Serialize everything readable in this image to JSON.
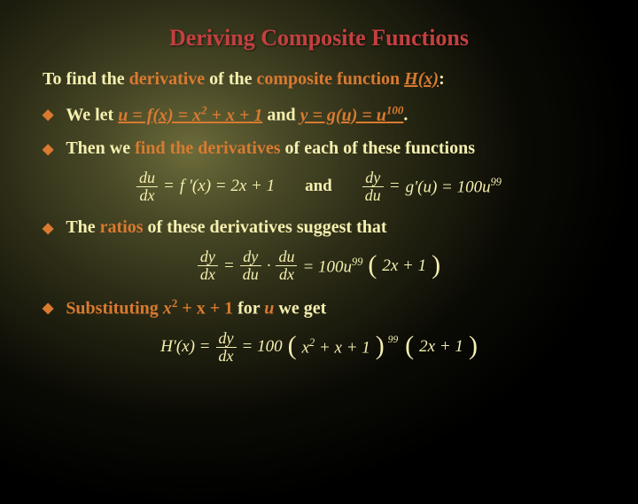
{
  "colors": {
    "title": "#c44040",
    "body": "#f5f0b0",
    "accent": "#d97a30",
    "bg_center": "#6b6b3a",
    "bg_edge": "#000000"
  },
  "title": "Deriving Composite Functions",
  "intro": {
    "prefix": "To ",
    "find": "find the ",
    "derivative": "derivative",
    "of_the": " of the ",
    "composite_function": "composite function",
    "space": " ",
    "hx": "H(x)",
    "colon": ":"
  },
  "bullets": [
    {
      "pre": "We let   ",
      "eq1_lhs": "u = f(x) = x",
      "eq1_exp": "2",
      "eq1_tail": " + x + 1",
      "and": "   and   ",
      "eq2_lhs": "y = g(u) = u",
      "eq2_exp": "100",
      "period": "."
    },
    {
      "pre": "Then we ",
      "mid": "find the derivatives",
      "post": " of each of these functions"
    },
    {
      "pre": "The ",
      "mid": "ratios",
      "post": " of these derivatives suggest that"
    },
    {
      "pre": "Substituting ",
      "mid_i": "x",
      "exp": "2",
      "mid_rest": " + x + 1",
      "for_text": " for ",
      "u_text": "u",
      "post": " we get"
    }
  ],
  "eq1": {
    "du": "du",
    "dx": "dx",
    "eq": " = ",
    "fprime": "f '(x) = 2x + 1",
    "and": "and",
    "dy": "dy",
    "du2": "du",
    "gprime": "g'(u) = 100u",
    "exp99": "99"
  },
  "eq2": {
    "dy": "dy",
    "dx": "dx",
    "eq": " = ",
    "dy2": "dy",
    "du": "du",
    "dot": " · ",
    "du2": "du",
    "dx2": "dx",
    "rhs_a": " = 100u",
    "exp99": "99",
    "rhs_b": "2x + 1"
  },
  "eq3": {
    "Hprime": "H'(x) = ",
    "dy": "dy",
    "dx": "dx",
    "eq": " = 100",
    "inner": "x",
    "exp2": "2",
    "inner2": " + x + 1",
    "exp99": "99",
    "tail": "2x + 1"
  }
}
